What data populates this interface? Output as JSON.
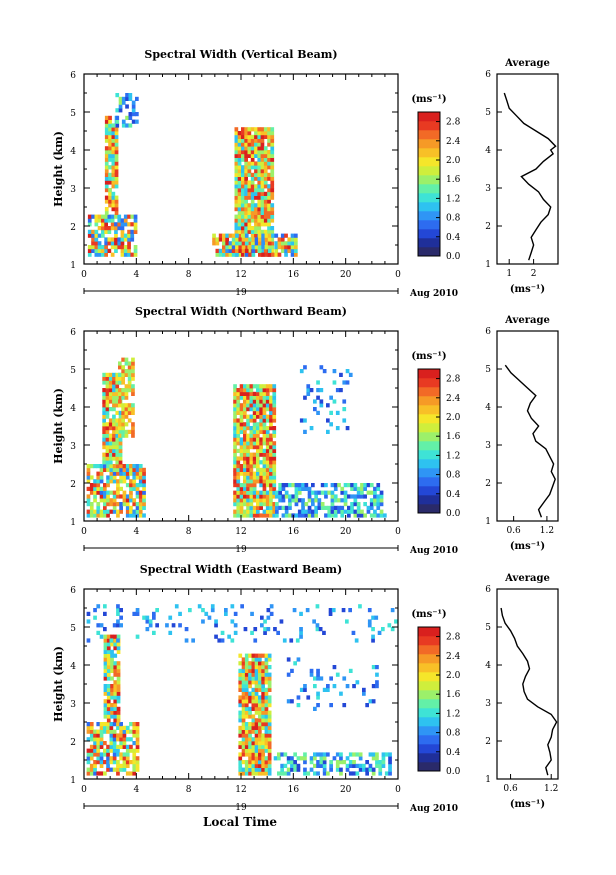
{
  "figure": {
    "xlabel": "Local Time",
    "date_label": "Aug 2010",
    "day_label": "19",
    "cbar_unit": "(ms⁻¹)",
    "avg_xlabel": "(ms⁻¹)"
  },
  "chart_data": [
    {
      "type": "heatmap",
      "title": "Spectral Width (Vertical Beam)",
      "ylabel": "Height (km)",
      "xlabel": "Local Time",
      "x_ticks": [
        "0",
        "4",
        "8",
        "12",
        "16",
        "20",
        "0"
      ],
      "xlim": [
        0,
        24
      ],
      "y_ticks": [
        "1",
        "2",
        "3",
        "4",
        "5",
        "6"
      ],
      "ylim": [
        1,
        6
      ],
      "colorbar": {
        "ticks": [
          "0.0",
          "0.4",
          "0.8",
          "1.2",
          "1.6",
          "2.0",
          "2.4",
          "2.8"
        ],
        "range": [
          0,
          3.0
        ]
      },
      "regions": [
        {
          "x": [
            0.3,
            4.0
          ],
          "y": [
            1.2,
            2.3
          ],
          "level": "mixed"
        },
        {
          "x": [
            1.6,
            2.6
          ],
          "y": [
            2.3,
            4.8
          ],
          "level": "high"
        },
        {
          "x": [
            2.4,
            4.0
          ],
          "y": [
            4.6,
            5.4
          ],
          "level": "low"
        },
        {
          "x": [
            11.5,
            14.3
          ],
          "y": [
            1.2,
            4.6
          ],
          "level": "high"
        },
        {
          "x": [
            9.8,
            16.2
          ],
          "y": [
            1.2,
            1.8
          ],
          "level": "mixed"
        }
      ],
      "average": {
        "title": "Average",
        "x_ticks": [
          "1",
          "2"
        ],
        "xlim": [
          0.5,
          3.0
        ],
        "height_km": [
          1.1,
          1.3,
          1.5,
          1.7,
          1.9,
          2.1,
          2.3,
          2.5,
          2.7,
          2.9,
          3.1,
          3.3,
          3.5,
          3.7,
          3.9,
          4.0,
          4.1,
          4.3,
          4.5,
          4.7,
          4.9,
          5.1,
          5.3,
          5.5
        ],
        "value": [
          1.8,
          1.9,
          2.0,
          1.9,
          2.1,
          2.3,
          2.6,
          2.7,
          2.4,
          2.2,
          1.8,
          1.5,
          2.1,
          2.4,
          2.8,
          2.7,
          2.9,
          2.6,
          2.1,
          1.6,
          1.3,
          1.0,
          0.9,
          0.8
        ]
      }
    },
    {
      "type": "heatmap",
      "title": "Spectral Width (Northward Beam)",
      "ylabel": "Height (km)",
      "xlabel": "Local Time",
      "x_ticks": [
        "0",
        "4",
        "8",
        "12",
        "16",
        "20",
        "0"
      ],
      "xlim": [
        0,
        24
      ],
      "y_ticks": [
        "1",
        "2",
        "3",
        "4",
        "5",
        "6"
      ],
      "ylim": [
        1,
        6
      ],
      "colorbar": {
        "ticks": [
          "0.0",
          "0.4",
          "0.8",
          "1.2",
          "1.6",
          "2.0",
          "2.4",
          "2.8"
        ],
        "range": [
          0,
          3.0
        ]
      },
      "regions": [
        {
          "x": [
            0.2,
            4.5
          ],
          "y": [
            1.1,
            2.5
          ],
          "level": "mixed"
        },
        {
          "x": [
            1.4,
            2.8
          ],
          "y": [
            2.5,
            4.8
          ],
          "level": "high"
        },
        {
          "x": [
            2.6,
            3.8
          ],
          "y": [
            3.2,
            5.2
          ],
          "level": "mid"
        },
        {
          "x": [
            11.4,
            14.6
          ],
          "y": [
            1.1,
            4.6
          ],
          "level": "high"
        },
        {
          "x": [
            14.6,
            23.0
          ],
          "y": [
            1.1,
            2.0
          ],
          "level": "low"
        },
        {
          "x": [
            16.5,
            20.5
          ],
          "y": [
            3.3,
            5.0
          ],
          "level": "sparse"
        }
      ],
      "average": {
        "title": "Average",
        "x_ticks": [
          "0.6",
          "1.2"
        ],
        "xlim": [
          0.3,
          1.4
        ],
        "height_km": [
          1.1,
          1.3,
          1.5,
          1.7,
          1.9,
          2.1,
          2.3,
          2.5,
          2.7,
          2.9,
          3.1,
          3.3,
          3.5,
          3.7,
          3.9,
          4.1,
          4.3,
          4.5,
          4.7,
          4.9,
          5.1
        ],
        "value": [
          1.1,
          1.05,
          1.15,
          1.25,
          1.3,
          1.35,
          1.28,
          1.32,
          1.25,
          1.18,
          1.0,
          0.95,
          1.05,
          0.92,
          0.85,
          0.9,
          1.0,
          0.85,
          0.7,
          0.55,
          0.45
        ]
      }
    },
    {
      "type": "heatmap",
      "title": "Spectral Width (Eastward Beam)",
      "ylabel": "Height (km)",
      "xlabel": "Local Time",
      "x_ticks": [
        "0",
        "4",
        "8",
        "12",
        "16",
        "20",
        "0"
      ],
      "xlim": [
        0,
        24
      ],
      "y_ticks": [
        "1",
        "2",
        "3",
        "4",
        "5",
        "6"
      ],
      "ylim": [
        1,
        6
      ],
      "colorbar": {
        "ticks": [
          "0.0",
          "0.4",
          "0.8",
          "1.2",
          "1.6",
          "2.0",
          "2.4",
          "2.8"
        ],
        "range": [
          0,
          3.0
        ]
      },
      "regions": [
        {
          "x": [
            0.2,
            4.0
          ],
          "y": [
            1.1,
            2.5
          ],
          "level": "mixed"
        },
        {
          "x": [
            1.5,
            2.7
          ],
          "y": [
            2.5,
            4.7
          ],
          "level": "high"
        },
        {
          "x": [
            11.8,
            14.2
          ],
          "y": [
            1.1,
            4.3
          ],
          "level": "high"
        },
        {
          "x": [
            14.5,
            23.5
          ],
          "y": [
            1.1,
            1.7
          ],
          "level": "low"
        },
        {
          "x": [
            15.5,
            22.5
          ],
          "y": [
            2.8,
            4.2
          ],
          "level": "sparse"
        },
        {
          "x": [
            0.2,
            24.0
          ],
          "y": [
            4.6,
            5.5
          ],
          "level": "sparse"
        }
      ],
      "average": {
        "title": "Average",
        "x_ticks": [
          "0.6",
          "1.2"
        ],
        "xlim": [
          0.4,
          1.3
        ],
        "height_km": [
          1.1,
          1.3,
          1.5,
          1.7,
          1.9,
          2.1,
          2.3,
          2.5,
          2.7,
          2.9,
          3.1,
          3.3,
          3.5,
          3.7,
          3.9,
          4.1,
          4.3,
          4.5,
          4.7,
          4.9,
          5.1,
          5.3,
          5.5
        ],
        "value": [
          1.15,
          1.12,
          1.2,
          1.18,
          1.15,
          1.2,
          1.22,
          1.28,
          1.2,
          1.0,
          0.85,
          0.8,
          0.78,
          0.82,
          0.88,
          0.85,
          0.78,
          0.7,
          0.66,
          0.6,
          0.52,
          0.48,
          0.46
        ]
      }
    }
  ]
}
